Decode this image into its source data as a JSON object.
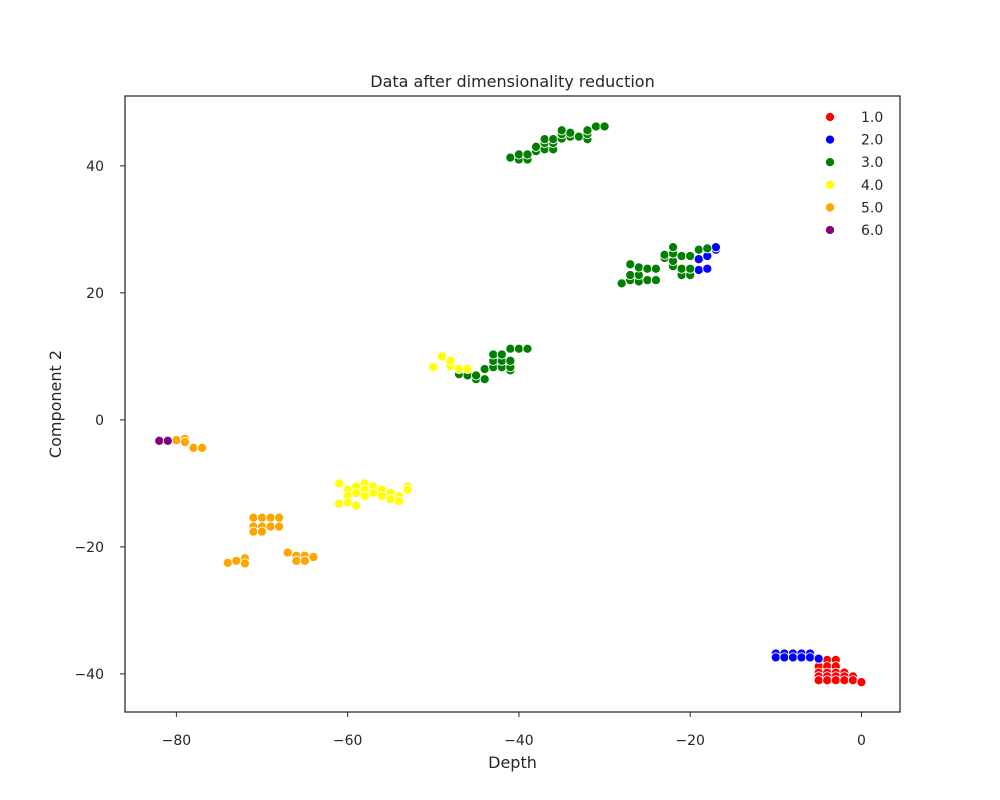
{
  "chart_data": {
    "type": "scatter",
    "title": "Data after dimensionality reduction",
    "xlabel": "Depth",
    "ylabel": "Component 2",
    "xlim": [
      -86,
      4.5
    ],
    "ylim": [
      -46,
      51
    ],
    "xticks": [
      -80,
      -60,
      -40,
      -20,
      0
    ],
    "yticks": [
      -40,
      -20,
      0,
      20,
      40
    ],
    "xtick_labels": [
      "−80",
      "−60",
      "−40",
      "−20",
      "0"
    ],
    "ytick_labels": [
      "−40",
      "−20",
      "0",
      "20",
      "40"
    ],
    "grid": false,
    "legend_position": "top-right",
    "series": [
      {
        "name": "1.0",
        "color": "#ff0000",
        "points": [
          [
            -5,
            -37.8
          ],
          [
            -4,
            -37.8
          ],
          [
            -3,
            -37.8
          ],
          [
            -5,
            -38.8
          ],
          [
            -4,
            -38.8
          ],
          [
            -3,
            -38.8
          ],
          [
            -5,
            -39.8
          ],
          [
            -4,
            -39.8
          ],
          [
            -3,
            -39.8
          ],
          [
            -2,
            -39.8
          ],
          [
            -5,
            -40.4
          ],
          [
            -4,
            -40.4
          ],
          [
            -3,
            -40.4
          ],
          [
            -2,
            -40.4
          ],
          [
            -1,
            -40.4
          ],
          [
            -5,
            -41.0
          ],
          [
            -4,
            -41.0
          ],
          [
            -3,
            -41.0
          ],
          [
            -2,
            -41.0
          ],
          [
            -1,
            -41.0
          ],
          [
            0,
            -41.3
          ]
        ]
      },
      {
        "name": "2.0",
        "color": "#0000ff",
        "points": [
          [
            -10,
            -36.8
          ],
          [
            -9,
            -36.8
          ],
          [
            -8,
            -36.8
          ],
          [
            -7,
            -36.8
          ],
          [
            -6,
            -36.8
          ],
          [
            -10,
            -37.4
          ],
          [
            -9,
            -37.4
          ],
          [
            -8,
            -37.4
          ],
          [
            -7,
            -37.4
          ],
          [
            -6,
            -37.4
          ],
          [
            -5,
            -37.6
          ],
          [
            -19,
            25.3
          ],
          [
            -18,
            25.8
          ],
          [
            -17,
            26.8
          ],
          [
            -17,
            27.2
          ],
          [
            -19,
            23.6
          ],
          [
            -18,
            23.8
          ]
        ]
      },
      {
        "name": "3.0",
        "color": "#008000",
        "points": [
          [
            -41,
            41.3
          ],
          [
            -40,
            41.0
          ],
          [
            -40,
            41.8
          ],
          [
            -39,
            41.0
          ],
          [
            -39,
            41.8
          ],
          [
            -38,
            42.3
          ],
          [
            -38,
            43.0
          ],
          [
            -37,
            42.6
          ],
          [
            -37,
            43.6
          ],
          [
            -37,
            44.2
          ],
          [
            -36,
            42.6
          ],
          [
            -36,
            43.6
          ],
          [
            -36,
            44.2
          ],
          [
            -35,
            44.3
          ],
          [
            -35,
            45.0
          ],
          [
            -35,
            45.6
          ],
          [
            -34,
            44.6
          ],
          [
            -34,
            45.2
          ],
          [
            -33,
            44.6
          ],
          [
            -32,
            44.2
          ],
          [
            -32,
            45.0
          ],
          [
            -32,
            45.6
          ],
          [
            -31,
            46.2
          ],
          [
            -30,
            46.2
          ],
          [
            -28,
            21.5
          ],
          [
            -27,
            22.0
          ],
          [
            -27,
            22.8
          ],
          [
            -27,
            24.5
          ],
          [
            -26,
            21.8
          ],
          [
            -26,
            22.8
          ],
          [
            -26,
            24.0
          ],
          [
            -25,
            22.0
          ],
          [
            -25,
            23.8
          ],
          [
            -24,
            22.0
          ],
          [
            -24,
            23.8
          ],
          [
            -23,
            25.5
          ],
          [
            -23,
            26.0
          ],
          [
            -22,
            24.2
          ],
          [
            -22,
            25.0
          ],
          [
            -22,
            26.2
          ],
          [
            -22,
            27.2
          ],
          [
            -21,
            22.8
          ],
          [
            -21,
            23.8
          ],
          [
            -21,
            25.8
          ],
          [
            -20,
            22.8
          ],
          [
            -20,
            23.8
          ],
          [
            -20,
            25.8
          ],
          [
            -19,
            26.8
          ],
          [
            -18,
            27.0
          ],
          [
            -47,
            7.2
          ],
          [
            -46,
            7.0
          ],
          [
            -45,
            6.4
          ],
          [
            -45,
            7.0
          ],
          [
            -44,
            6.4
          ],
          [
            -44,
            8.0
          ],
          [
            -43,
            8.3
          ],
          [
            -43,
            9.3
          ],
          [
            -43,
            10.3
          ],
          [
            -42,
            8.3
          ],
          [
            -42,
            9.3
          ],
          [
            -42,
            10.3
          ],
          [
            -41,
            7.8
          ],
          [
            -41,
            8.3
          ],
          [
            -41,
            9.3
          ],
          [
            -41,
            11.2
          ],
          [
            -40,
            11.2
          ],
          [
            -39,
            11.2
          ]
        ]
      },
      {
        "name": "4.0",
        "color": "#ffff00",
        "points": [
          [
            -50,
            8.3
          ],
          [
            -49,
            10.0
          ],
          [
            -48,
            8.5
          ],
          [
            -48,
            9.3
          ],
          [
            -47,
            8.0
          ],
          [
            -46,
            8.0
          ],
          [
            -61,
            -10.0
          ],
          [
            -61,
            -13.2
          ],
          [
            -60,
            -11.0
          ],
          [
            -60,
            -12.0
          ],
          [
            -60,
            -13.0
          ],
          [
            -59,
            -10.5
          ],
          [
            -59,
            -11.5
          ],
          [
            -59,
            -13.5
          ],
          [
            -58,
            -10.0
          ],
          [
            -58,
            -11.0
          ],
          [
            -58,
            -12.0
          ],
          [
            -57,
            -10.5
          ],
          [
            -57,
            -11.5
          ],
          [
            -56,
            -11.0
          ],
          [
            -56,
            -12.0
          ],
          [
            -55,
            -11.5
          ],
          [
            -55,
            -12.5
          ],
          [
            -54,
            -12.0
          ],
          [
            -54,
            -12.8
          ],
          [
            -53,
            -10.5
          ],
          [
            -53,
            -11.0
          ]
        ]
      },
      {
        "name": "5.0",
        "color": "#ffa500",
        "points": [
          [
            -80,
            -3.2
          ],
          [
            -79,
            -3.0
          ],
          [
            -79,
            -3.5
          ],
          [
            -78,
            -4.4
          ],
          [
            -77,
            -4.4
          ],
          [
            -71,
            -15.4
          ],
          [
            -70,
            -15.4
          ],
          [
            -69,
            -15.4
          ],
          [
            -68,
            -15.4
          ],
          [
            -71,
            -16.8
          ],
          [
            -70,
            -16.8
          ],
          [
            -69,
            -16.8
          ],
          [
            -68,
            -16.8
          ],
          [
            -71,
            -17.6
          ],
          [
            -70,
            -17.6
          ],
          [
            -67,
            -20.9
          ],
          [
            -66,
            -21.4
          ],
          [
            -65,
            -21.4
          ],
          [
            -66,
            -22.2
          ],
          [
            -65,
            -22.2
          ],
          [
            -64,
            -21.6
          ],
          [
            -74,
            -22.5
          ],
          [
            -73,
            -22.2
          ],
          [
            -72,
            -21.8
          ],
          [
            -72,
            -22.6
          ]
        ]
      },
      {
        "name": "6.0",
        "color": "#800080",
        "points": [
          [
            -82,
            -3.3
          ],
          [
            -81,
            -3.3
          ]
        ]
      }
    ]
  }
}
